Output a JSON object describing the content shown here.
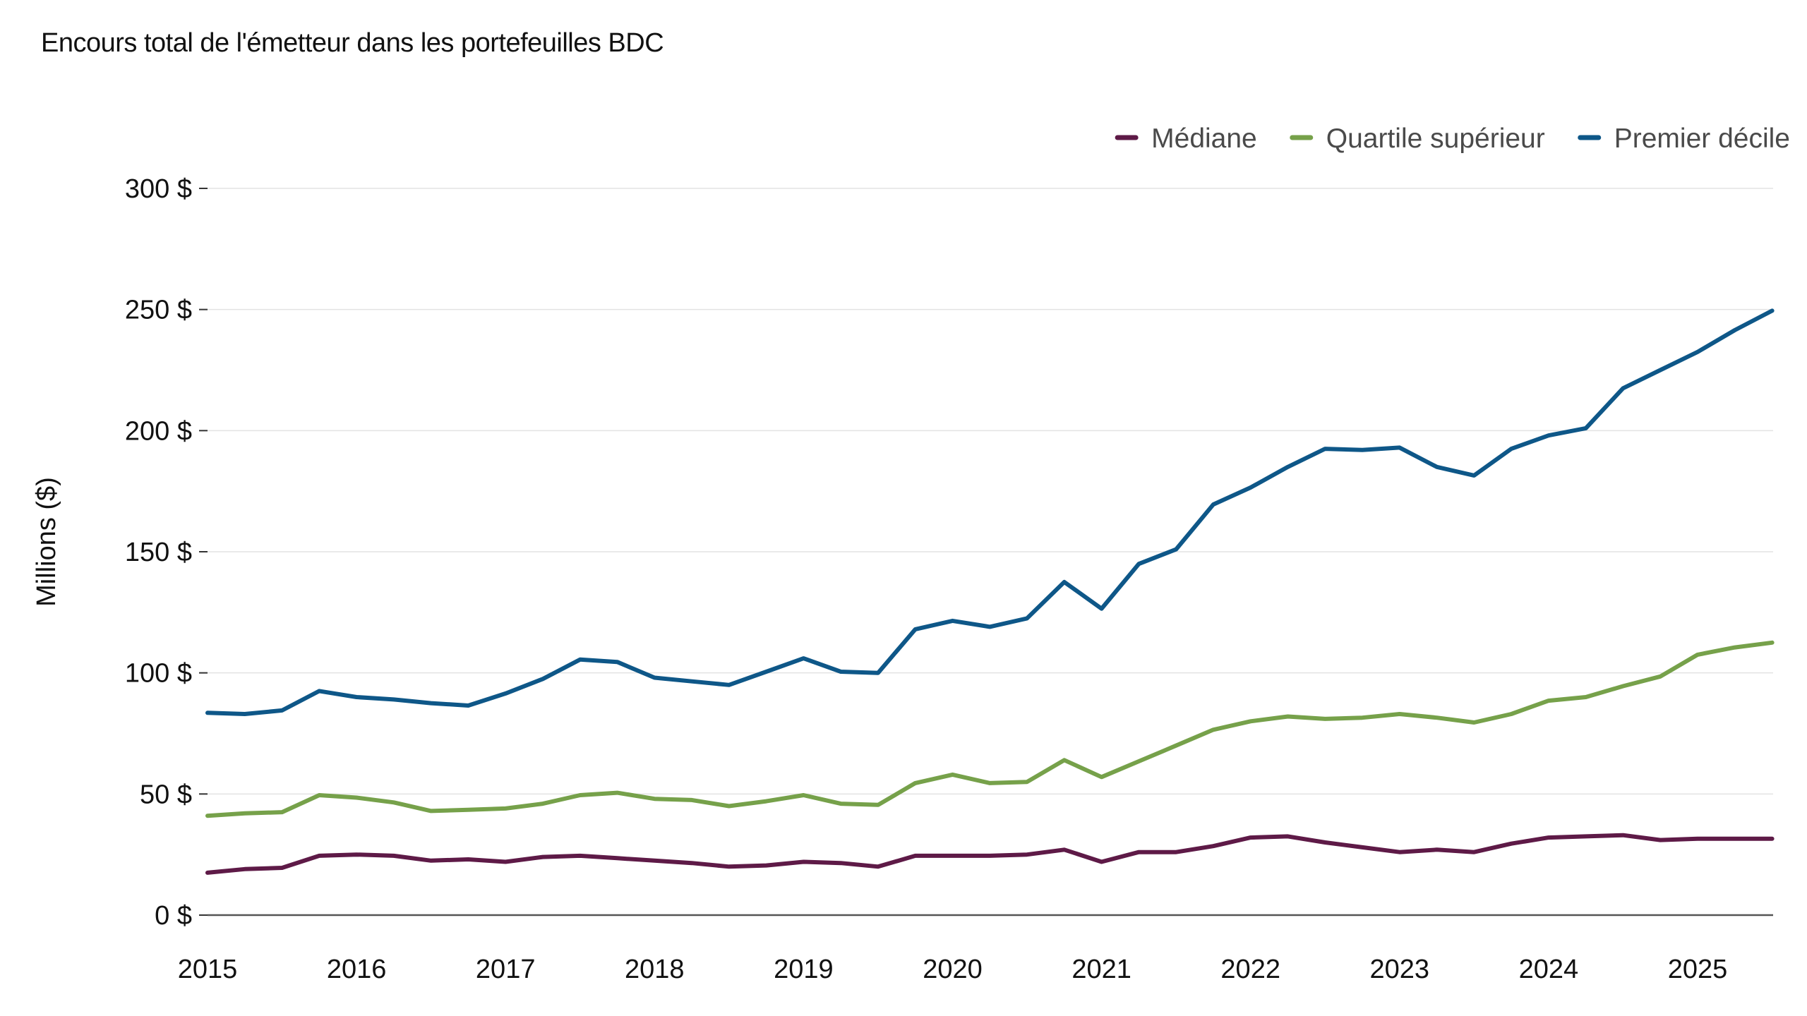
{
  "chart_data": {
    "type": "line",
    "title": "Encours total de l'émetteur dans les portefeuilles BDC",
    "ylabel": "Millions ($)",
    "xlabel": "",
    "xlim": [
      2015,
      2025.7
    ],
    "ylim": [
      0,
      300
    ],
    "yticks": [
      0,
      50,
      100,
      150,
      200,
      250,
      300
    ],
    "ytick_labels": [
      "0 $",
      "50 $",
      "100 $",
      "150 $",
      "200 $",
      "250 $",
      "300 $"
    ],
    "xticks": [
      2015,
      2016,
      2017,
      2018,
      2019,
      2020,
      2021,
      2022,
      2023,
      2024,
      2025
    ],
    "xtick_labels": [
      "2015",
      "2016",
      "2017",
      "2018",
      "2019",
      "2020",
      "2021",
      "2022",
      "2023",
      "2024",
      "2025"
    ],
    "grid": "horizontal",
    "legend_position": "top-right",
    "x": [
      2015.0,
      2015.25,
      2015.5,
      2015.75,
      2016.0,
      2016.25,
      2016.5,
      2016.75,
      2017.0,
      2017.25,
      2017.5,
      2017.75,
      2018.0,
      2018.25,
      2018.5,
      2018.75,
      2019.0,
      2019.25,
      2019.5,
      2019.75,
      2020.0,
      2020.25,
      2020.5,
      2020.75,
      2021.0,
      2021.25,
      2021.5,
      2021.75,
      2022.0,
      2022.25,
      2022.5,
      2022.75,
      2023.0,
      2023.25,
      2023.5,
      2023.75,
      2024.0,
      2024.25,
      2024.5,
      2024.75,
      2025.0,
      2025.25,
      2025.5
    ],
    "series": [
      {
        "name": "Médiane",
        "color": "#5e1a47",
        "values": [
          17.5,
          19,
          19.5,
          24.5,
          25,
          24.5,
          22.5,
          23,
          22,
          24,
          24.5,
          23.5,
          22.5,
          21.5,
          20,
          20.5,
          22,
          21.5,
          20,
          24.5,
          24.5,
          24.5,
          25,
          27,
          22,
          26,
          26,
          28.5,
          32,
          32.5,
          30,
          28,
          26,
          27,
          26,
          29.5,
          32,
          32.5,
          33,
          31,
          31.5,
          31.5,
          31.5
        ]
      },
      {
        "name": "Quartile supérieur",
        "color": "#76a14a",
        "values": [
          41,
          42,
          42.5,
          49.5,
          48.5,
          46.5,
          43,
          43.5,
          44,
          46,
          49.5,
          50.5,
          48,
          47.5,
          45,
          47,
          49.5,
          46,
          45.5,
          54.5,
          58,
          54.5,
          55,
          64,
          57,
          63.5,
          70,
          76.5,
          80,
          82,
          81,
          81.5,
          83,
          81.5,
          79.5,
          83,
          88.5,
          90,
          94.5,
          98.5,
          107.5,
          110.5,
          112.5
        ]
      },
      {
        "name": "Premier décile",
        "color": "#0e5788",
        "values": [
          83.5,
          83,
          84.5,
          92.5,
          90,
          89,
          87.5,
          86.5,
          91.5,
          97.5,
          105.5,
          104.5,
          98,
          96.5,
          95,
          100.5,
          106,
          100.5,
          100,
          118,
          121.5,
          119,
          122.5,
          137.5,
          126.5,
          145,
          151,
          169.5,
          176.5,
          185,
          192.5,
          192,
          193,
          185,
          181.5,
          192.5,
          198,
          201,
          217.5,
          225,
          232.5,
          241.5,
          249.5
        ]
      }
    ]
  }
}
